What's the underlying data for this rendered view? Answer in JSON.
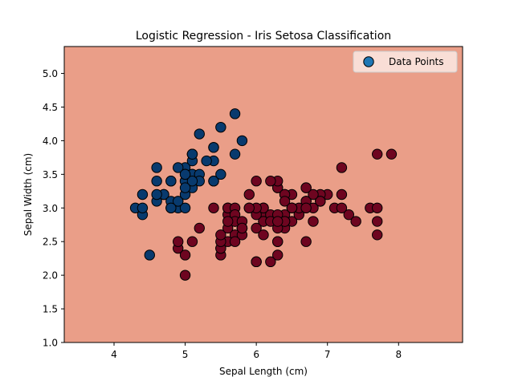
{
  "chart_data": {
    "type": "scatter",
    "title": "Logistic Regression - Iris Setosa Classification",
    "xlabel": "Sepal Length (cm)",
    "ylabel": "Sepal Width (cm)",
    "xlim": [
      3.3,
      8.9
    ],
    "ylim": [
      1.0,
      5.4
    ],
    "x_ticks": [
      4,
      5,
      6,
      7,
      8
    ],
    "y_ticks": [
      1.0,
      1.5,
      2.0,
      2.5,
      3.0,
      3.5,
      4.0,
      4.5,
      5.0
    ],
    "x_tick_labels": [
      "4",
      "5",
      "6",
      "7",
      "8"
    ],
    "y_tick_labels": [
      "1.0",
      "1.5",
      "2.0",
      "2.5",
      "3.0",
      "3.5",
      "4.0",
      "4.5",
      "5.0"
    ],
    "grid": false,
    "legend": {
      "placement": "top-right",
      "entries": [
        "Data Points"
      ]
    },
    "background_color": "#ea9e88",
    "class_colors": {
      "setosa": "#083a6e",
      "other": "#6e0520"
    },
    "legend_marker_color": "#1f77b4",
    "series": [
      {
        "class": "setosa",
        "points": [
          [
            5.1,
            3.5
          ],
          [
            4.9,
            3.0
          ],
          [
            4.7,
            3.2
          ],
          [
            4.6,
            3.1
          ],
          [
            5.0,
            3.6
          ],
          [
            5.4,
            3.9
          ],
          [
            4.6,
            3.4
          ],
          [
            5.0,
            3.4
          ],
          [
            4.4,
            2.9
          ],
          [
            4.9,
            3.1
          ],
          [
            5.4,
            3.7
          ],
          [
            4.8,
            3.4
          ],
          [
            4.8,
            3.0
          ],
          [
            4.3,
            3.0
          ],
          [
            5.8,
            4.0
          ],
          [
            5.7,
            4.4
          ],
          [
            5.4,
            3.9
          ],
          [
            5.1,
            3.5
          ],
          [
            5.7,
            3.8
          ],
          [
            5.1,
            3.8
          ],
          [
            5.4,
            3.4
          ],
          [
            5.1,
            3.7
          ],
          [
            4.6,
            3.6
          ],
          [
            5.1,
            3.3
          ],
          [
            4.8,
            3.4
          ],
          [
            5.0,
            3.0
          ],
          [
            5.0,
            3.4
          ],
          [
            5.2,
            3.5
          ],
          [
            5.2,
            3.4
          ],
          [
            4.7,
            3.2
          ],
          [
            4.8,
            3.1
          ],
          [
            5.4,
            3.4
          ],
          [
            5.2,
            4.1
          ],
          [
            5.5,
            4.2
          ],
          [
            4.9,
            3.1
          ],
          [
            5.0,
            3.2
          ],
          [
            5.5,
            3.5
          ],
          [
            4.9,
            3.6
          ],
          [
            4.4,
            3.0
          ],
          [
            5.1,
            3.4
          ],
          [
            5.0,
            3.5
          ],
          [
            4.5,
            2.3
          ],
          [
            4.4,
            3.2
          ],
          [
            5.0,
            3.5
          ],
          [
            5.1,
            3.8
          ],
          [
            4.8,
            3.0
          ],
          [
            5.1,
            3.8
          ],
          [
            4.6,
            3.2
          ],
          [
            5.3,
            3.7
          ],
          [
            5.0,
            3.3
          ]
        ]
      },
      {
        "class": "other",
        "points": [
          [
            7.0,
            3.2
          ],
          [
            6.4,
            3.2
          ],
          [
            6.9,
            3.1
          ],
          [
            5.5,
            2.3
          ],
          [
            6.5,
            2.8
          ],
          [
            5.7,
            2.8
          ],
          [
            6.3,
            3.3
          ],
          [
            4.9,
            2.4
          ],
          [
            6.6,
            2.9
          ],
          [
            5.2,
            2.7
          ],
          [
            5.0,
            2.0
          ],
          [
            5.9,
            3.0
          ],
          [
            6.0,
            2.2
          ],
          [
            6.1,
            2.9
          ],
          [
            5.6,
            2.9
          ],
          [
            6.7,
            3.1
          ],
          [
            5.6,
            3.0
          ],
          [
            5.8,
            2.7
          ],
          [
            6.2,
            2.2
          ],
          [
            5.6,
            2.5
          ],
          [
            5.9,
            3.2
          ],
          [
            6.1,
            2.8
          ],
          [
            6.3,
            2.5
          ],
          [
            6.1,
            2.8
          ],
          [
            6.4,
            2.9
          ],
          [
            6.6,
            3.0
          ],
          [
            6.8,
            2.8
          ],
          [
            6.7,
            3.0
          ],
          [
            6.0,
            2.9
          ],
          [
            5.7,
            2.6
          ],
          [
            5.5,
            2.4
          ],
          [
            5.5,
            2.4
          ],
          [
            5.8,
            2.7
          ],
          [
            6.0,
            2.7
          ],
          [
            5.4,
            3.0
          ],
          [
            6.0,
            3.4
          ],
          [
            6.7,
            3.1
          ],
          [
            6.3,
            2.3
          ],
          [
            5.6,
            3.0
          ],
          [
            5.5,
            2.5
          ],
          [
            5.5,
            2.6
          ],
          [
            6.1,
            3.0
          ],
          [
            5.8,
            2.6
          ],
          [
            5.0,
            2.3
          ],
          [
            5.6,
            2.7
          ],
          [
            5.7,
            3.0
          ],
          [
            5.7,
            2.9
          ],
          [
            6.2,
            2.9
          ],
          [
            5.1,
            2.5
          ],
          [
            5.7,
            2.8
          ],
          [
            6.3,
            3.3
          ],
          [
            5.8,
            2.7
          ],
          [
            7.1,
            3.0
          ],
          [
            6.3,
            2.9
          ],
          [
            6.5,
            3.0
          ],
          [
            7.6,
            3.0
          ],
          [
            4.9,
            2.5
          ],
          [
            7.3,
            2.9
          ],
          [
            6.7,
            2.5
          ],
          [
            7.2,
            3.6
          ],
          [
            6.5,
            3.2
          ],
          [
            6.4,
            2.7
          ],
          [
            6.8,
            3.0
          ],
          [
            5.7,
            2.5
          ],
          [
            5.8,
            2.8
          ],
          [
            6.4,
            3.2
          ],
          [
            6.5,
            3.0
          ],
          [
            7.7,
            3.8
          ],
          [
            7.7,
            2.6
          ],
          [
            6.0,
            2.2
          ],
          [
            6.9,
            3.2
          ],
          [
            5.6,
            2.8
          ],
          [
            7.7,
            2.8
          ],
          [
            6.3,
            2.7
          ],
          [
            6.7,
            3.3
          ],
          [
            7.2,
            3.2
          ],
          [
            6.2,
            2.8
          ],
          [
            6.1,
            3.0
          ],
          [
            6.4,
            2.8
          ],
          [
            7.2,
            3.0
          ],
          [
            7.4,
            2.8
          ],
          [
            7.9,
            3.8
          ],
          [
            6.4,
            2.8
          ],
          [
            6.3,
            2.8
          ],
          [
            6.1,
            2.6
          ],
          [
            7.7,
            3.0
          ],
          [
            6.3,
            3.4
          ],
          [
            6.4,
            3.1
          ],
          [
            6.0,
            3.0
          ],
          [
            6.9,
            3.1
          ],
          [
            6.7,
            3.1
          ],
          [
            6.9,
            3.1
          ],
          [
            5.8,
            2.7
          ],
          [
            6.8,
            3.2
          ],
          [
            6.7,
            3.3
          ],
          [
            6.7,
            3.0
          ],
          [
            6.3,
            2.5
          ],
          [
            6.5,
            3.0
          ],
          [
            6.2,
            3.4
          ],
          [
            5.9,
            3.0
          ]
        ]
      }
    ]
  }
}
